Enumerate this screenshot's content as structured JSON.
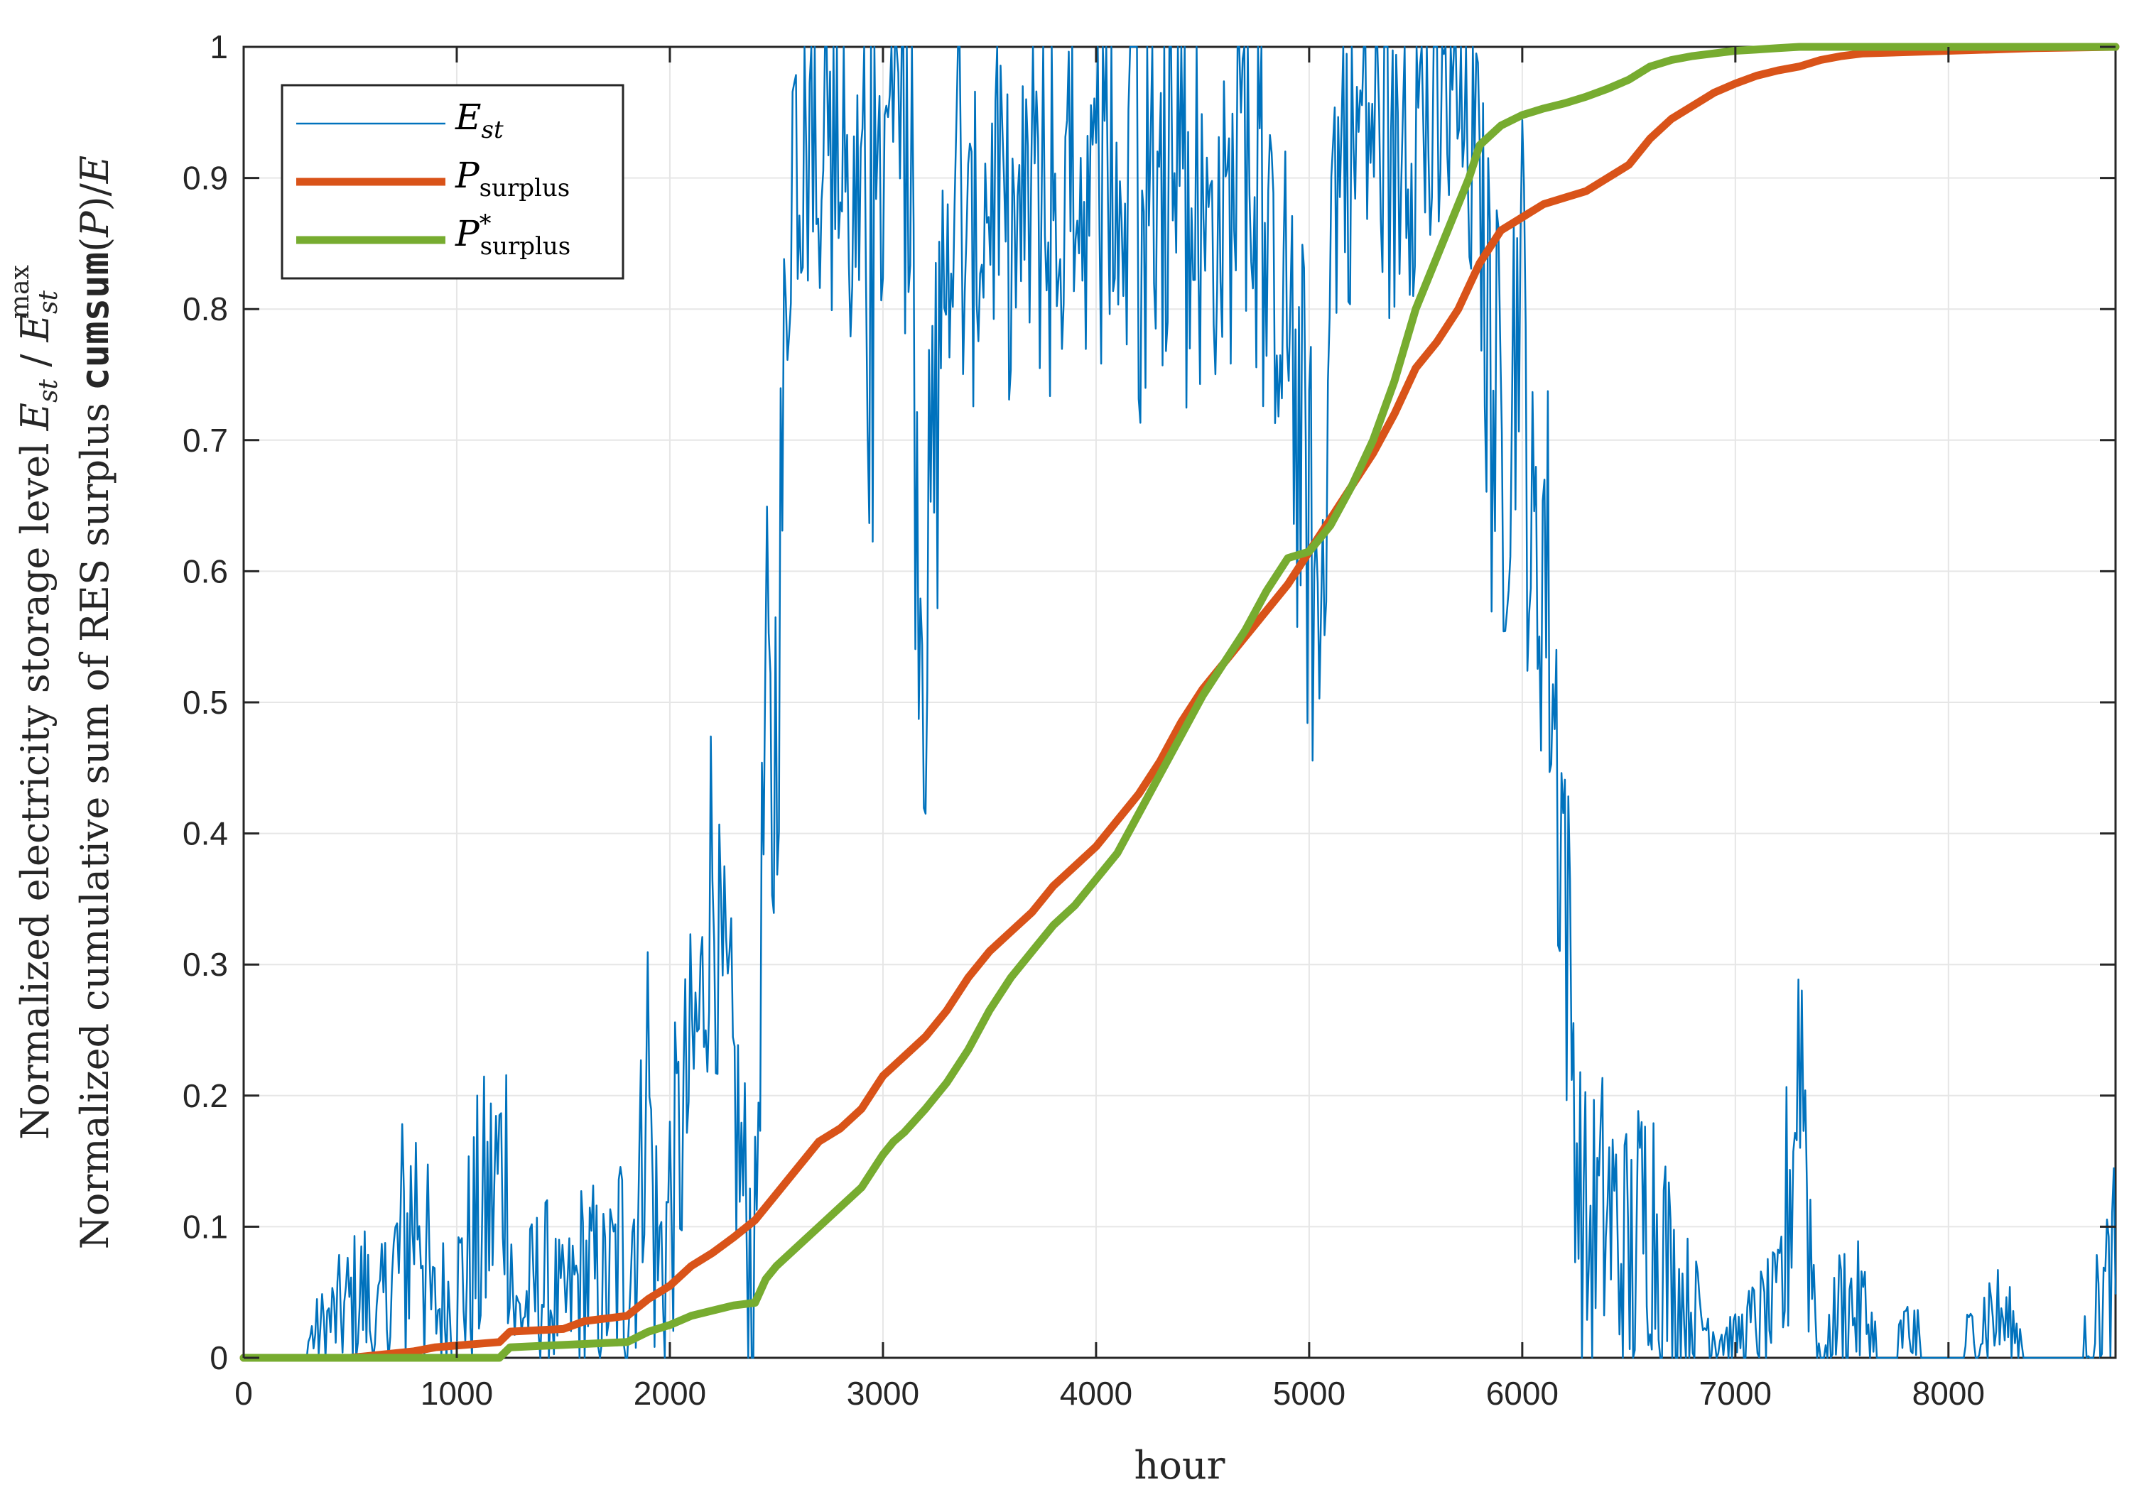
{
  "chart_data": {
    "type": "line",
    "xlabel": "hour",
    "ylabel_line1": "Normalized electricity storage level E_st / E_st^max",
    "ylabel_line2": "Normalized cumulative sum of RES surplus cumsum(P)/E",
    "xlim": [
      0,
      8784
    ],
    "ylim": [
      0,
      1
    ],
    "x_ticks": [
      "0",
      "1000",
      "2000",
      "3000",
      "4000",
      "5000",
      "6000",
      "7000",
      "8000"
    ],
    "y_ticks": [
      "0",
      "0.1",
      "0.2",
      "0.3",
      "0.4",
      "0.5",
      "0.6",
      "0.7",
      "0.8",
      "0.9",
      "1"
    ],
    "grid": true,
    "legend_position": "top-left",
    "series": [
      {
        "name": "E_st",
        "color": "#0072BD",
        "style": "thin-oscillating",
        "x": [
          0,
          300,
          580,
          600,
          830,
          860,
          880,
          1000,
          1230,
          1250,
          1270,
          1400,
          1500,
          1600,
          1700,
          1800,
          1870,
          1890,
          1920,
          1950,
          2000,
          2100,
          2150,
          2200,
          2230,
          2300,
          2350,
          2400,
          2450,
          2480,
          2520,
          2560,
          2580,
          2600,
          2700,
          2800,
          2900,
          2950,
          3000,
          3100,
          3200,
          3300,
          3400,
          3500,
          3600,
          3700,
          3800,
          3900,
          4000,
          4100,
          4200,
          4300,
          4400,
          4500,
          4600,
          4700,
          4800,
          4900,
          5000,
          5050,
          5100,
          5200,
          5300,
          5400,
          5500,
          5600,
          5700,
          5800,
          5850,
          5900,
          6000,
          6050,
          6100,
          6150,
          6200,
          6230,
          6260,
          6300,
          6400,
          6500,
          6600,
          6700,
          6800,
          6900,
          7000,
          7100,
          7200,
          7280,
          7300,
          7320,
          7350,
          7400,
          7500,
          7600,
          7700,
          7800,
          8000,
          8200,
          8400,
          8600,
          8700,
          8784
        ],
        "y": [
          0,
          0.02,
          0.07,
          0.02,
          0.17,
          0.1,
          0.05,
          0.07,
          0.19,
          0.16,
          0.04,
          0.08,
          0.05,
          0.09,
          0.07,
          0.12,
          0.17,
          0.31,
          0.15,
          0.1,
          0.15,
          0.25,
          0.3,
          0.42,
          0.33,
          0.24,
          0.15,
          0.1,
          0.55,
          0.45,
          0.67,
          0.9,
          1.0,
          0.96,
          0.97,
          0.92,
          0.88,
          0.8,
          0.93,
          0.95,
          0.6,
          0.92,
          0.86,
          0.93,
          0.88,
          0.91,
          0.87,
          0.94,
          0.9,
          0.92,
          0.85,
          0.91,
          0.87,
          0.89,
          0.9,
          0.93,
          0.86,
          0.85,
          0.68,
          0.6,
          0.93,
          0.96,
          0.98,
          0.93,
          0.97,
          0.95,
          0.99,
          0.92,
          0.8,
          0.74,
          0.88,
          0.62,
          0.7,
          0.55,
          0.44,
          0.3,
          0.18,
          0.12,
          0.15,
          0.1,
          0.16,
          0.08,
          0.05,
          0.03,
          0.02,
          0.04,
          0.05,
          0.22,
          0.3,
          0.25,
          0.13,
          0.0,
          0.06,
          0.05,
          0.0,
          0.03,
          0.0,
          0.05,
          0.01,
          0.0,
          0.05,
          0.09
        ]
      },
      {
        "name": "P_surplus",
        "color": "#D95319",
        "style": "thick",
        "x": [
          0,
          500,
          800,
          900,
          1200,
          1250,
          1500,
          1600,
          1800,
          1900,
          2000,
          2100,
          2200,
          2300,
          2400,
          2500,
          2600,
          2700,
          2800,
          2900,
          3000,
          3100,
          3200,
          3300,
          3400,
          3500,
          3600,
          3700,
          3800,
          3900,
          4000,
          4100,
          4200,
          4300,
          4400,
          4500,
          4600,
          4700,
          4800,
          4900,
          5000,
          5100,
          5200,
          5300,
          5400,
          5500,
          5600,
          5700,
          5800,
          5900,
          6000,
          6100,
          6200,
          6300,
          6400,
          6500,
          6600,
          6700,
          6800,
          6900,
          7000,
          7100,
          7200,
          7300,
          7400,
          7500,
          7600,
          7800,
          8000,
          8200,
          8400,
          8784
        ],
        "y": [
          0,
          0,
          0.005,
          0.008,
          0.012,
          0.02,
          0.022,
          0.028,
          0.032,
          0.045,
          0.055,
          0.07,
          0.08,
          0.092,
          0.105,
          0.125,
          0.145,
          0.165,
          0.175,
          0.19,
          0.215,
          0.23,
          0.245,
          0.265,
          0.29,
          0.31,
          0.325,
          0.34,
          0.36,
          0.375,
          0.39,
          0.41,
          0.43,
          0.455,
          0.485,
          0.51,
          0.53,
          0.55,
          0.57,
          0.59,
          0.615,
          0.64,
          0.665,
          0.69,
          0.72,
          0.755,
          0.775,
          0.8,
          0.835,
          0.86,
          0.87,
          0.88,
          0.885,
          0.89,
          0.9,
          0.91,
          0.93,
          0.945,
          0.955,
          0.965,
          0.972,
          0.978,
          0.982,
          0.985,
          0.99,
          0.993,
          0.995,
          0.996,
          0.997,
          0.998,
          0.999,
          1.0
        ]
      },
      {
        "name": "P*_surplus",
        "color": "#77AC30",
        "style": "thick",
        "x": [
          0,
          1200,
          1250,
          1800,
          1900,
          2000,
          2100,
          2200,
          2300,
          2400,
          2450,
          2500,
          2600,
          2700,
          2800,
          2900,
          3000,
          3050,
          3100,
          3200,
          3300,
          3400,
          3500,
          3600,
          3700,
          3800,
          3900,
          4000,
          4100,
          4200,
          4300,
          4400,
          4500,
          4600,
          4700,
          4800,
          4900,
          5000,
          5100,
          5200,
          5300,
          5400,
          5500,
          5600,
          5700,
          5750,
          5800,
          5900,
          6000,
          6100,
          6200,
          6300,
          6400,
          6500,
          6600,
          6700,
          6800,
          6900,
          7000,
          7100,
          7200,
          7300,
          7400,
          8784
        ],
        "y": [
          0,
          0,
          0.008,
          0.012,
          0.02,
          0.025,
          0.032,
          0.036,
          0.04,
          0.042,
          0.06,
          0.07,
          0.085,
          0.1,
          0.115,
          0.13,
          0.155,
          0.165,
          0.172,
          0.19,
          0.21,
          0.235,
          0.265,
          0.29,
          0.31,
          0.33,
          0.345,
          0.365,
          0.385,
          0.415,
          0.445,
          0.475,
          0.505,
          0.53,
          0.555,
          0.585,
          0.61,
          0.615,
          0.635,
          0.665,
          0.7,
          0.745,
          0.8,
          0.84,
          0.88,
          0.9,
          0.925,
          0.94,
          0.948,
          0.953,
          0.957,
          0.962,
          0.968,
          0.975,
          0.985,
          0.99,
          0.993,
          0.995,
          0.997,
          0.998,
          0.999,
          1.0,
          1.0,
          1.0
        ]
      }
    ]
  }
}
